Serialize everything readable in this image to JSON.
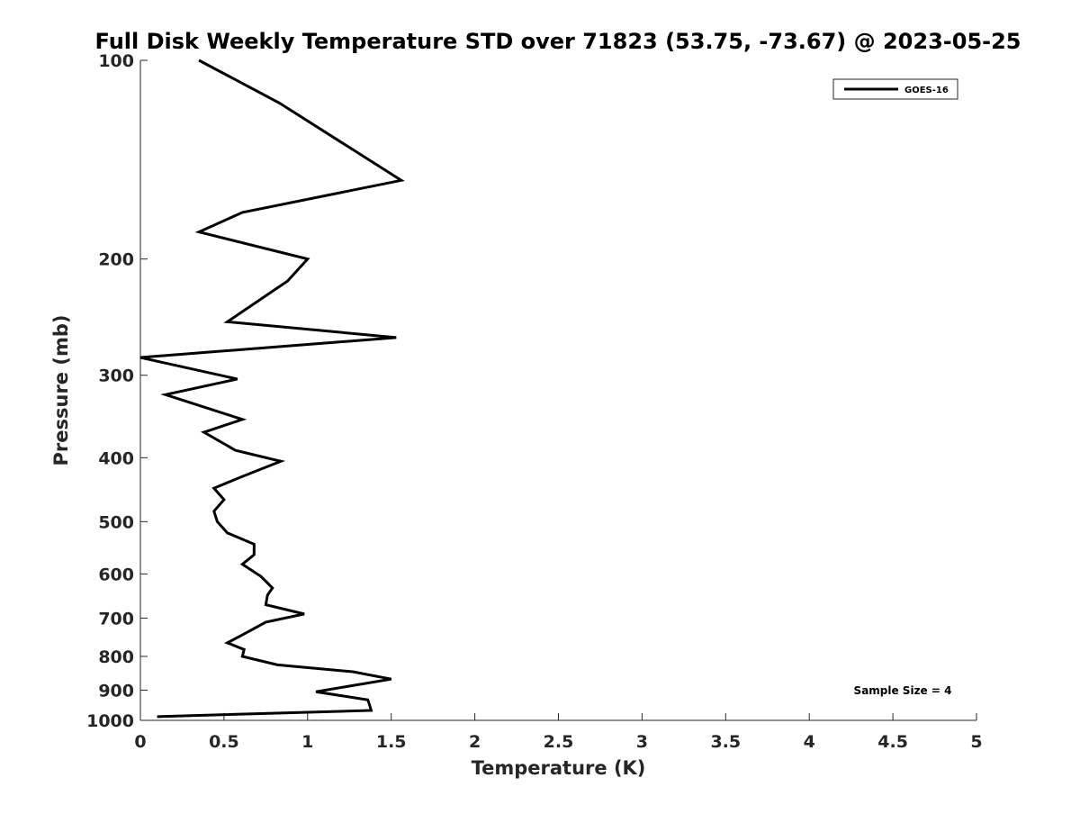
{
  "chart_data": {
    "type": "line",
    "title": "Full Disk Weekly Temperature STD over 71823 (53.75, -73.67) @ 2023-05-25",
    "xlabel": "Temperature (K)",
    "ylabel": "Pressure (mb)",
    "xlim": [
      0,
      5
    ],
    "ylim": [
      100,
      1000
    ],
    "y_scale": "log",
    "y_reversed": true,
    "grid": false,
    "legend_position": "top-right",
    "x_ticks": [
      "0",
      "0.5",
      "1",
      "1.5",
      "2",
      "2.5",
      "3",
      "3.5",
      "4",
      "4.5",
      "5"
    ],
    "y_ticks": [
      "100",
      "200",
      "300",
      "400",
      "500",
      "600",
      "700",
      "800",
      "900",
      "1000"
    ],
    "annotation": "Sample Size = 4",
    "series": [
      {
        "name": "GOES-16",
        "color": "#000000",
        "x": [
          0.35,
          0.83,
          1.56,
          0.61,
          0.35,
          1.0,
          0.88,
          0.52,
          1.53,
          0.0,
          0.58,
          0.15,
          0.61,
          0.38,
          0.57,
          0.84,
          0.59,
          0.44,
          0.5,
          0.44,
          0.46,
          0.52,
          0.68,
          0.68,
          0.61,
          0.72,
          0.79,
          0.76,
          0.75,
          0.98,
          0.75,
          0.61,
          0.52,
          0.62,
          0.61,
          0.82,
          1.27,
          1.5,
          1.05,
          1.36,
          1.37,
          1.38,
          0.1
        ],
        "y": [
          100,
          116,
          152,
          170,
          182,
          200,
          216,
          249,
          263,
          282,
          304,
          321,
          350,
          366,
          390,
          405,
          429,
          445,
          463,
          482,
          500,
          520,
          541,
          561,
          580,
          605,
          630,
          646,
          668,
          690,
          710,
          742,
          763,
          781,
          800,
          824,
          844,
          866,
          905,
          931,
          947,
          966,
          987
        ]
      }
    ]
  }
}
